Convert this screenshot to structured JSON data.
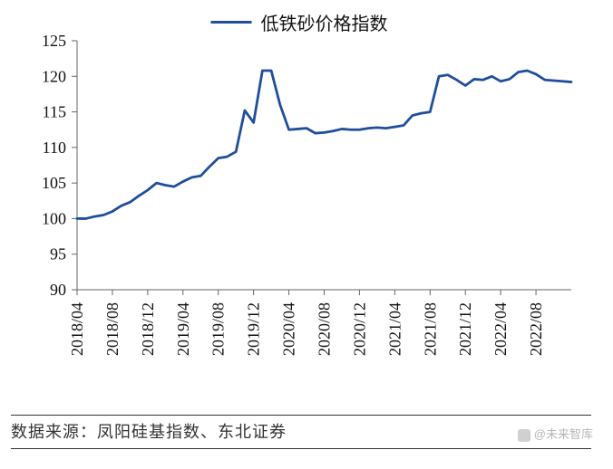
{
  "chart": {
    "type": "line",
    "legend_label": "低铁砂价格指数",
    "line_color": "#1f4e9b",
    "line_width": 2.8,
    "background_color": "#ffffff",
    "tick_color": "#666666",
    "axis_color": "#666666",
    "text_color": "#111111",
    "label_fontsize": 18,
    "legend_fontsize": 20,
    "ylim": [
      90,
      125
    ],
    "ytick_step": 5,
    "yticks": [
      90,
      95,
      100,
      105,
      110,
      115,
      120,
      125
    ],
    "xticks_labels": [
      "2018/04",
      "2018/08",
      "2018/12",
      "2019/04",
      "2019/08",
      "2019/12",
      "2020/04",
      "2020/08",
      "2020/12",
      "2021/04",
      "2021/08",
      "2021/12",
      "2022/04",
      "2022/08"
    ],
    "xticks_idx": [
      0,
      4,
      8,
      12,
      16,
      20,
      24,
      28,
      32,
      36,
      40,
      44,
      48,
      52
    ],
    "x_count": 57,
    "series": {
      "values": [
        100.0,
        100.0,
        100.3,
        100.5,
        101.0,
        101.8,
        102.3,
        103.2,
        104.0,
        105.0,
        104.7,
        104.5,
        105.2,
        105.8,
        106.0,
        107.3,
        108.5,
        108.7,
        109.4,
        115.2,
        113.5,
        120.8,
        120.8,
        116.0,
        112.5,
        112.6,
        112.7,
        112.0,
        112.1,
        112.3,
        112.6,
        112.5,
        112.5,
        112.7,
        112.8,
        112.7,
        112.9,
        113.1,
        114.5,
        114.8,
        115.0,
        120.0,
        120.2,
        119.5,
        118.7,
        119.6,
        119.5,
        120.0,
        119.3,
        119.6,
        120.6,
        120.8,
        120.3,
        119.5,
        119.4,
        119.3,
        119.2
      ]
    }
  },
  "footer": {
    "label": "数据来源：凤阳硅基指数、东北证券"
  },
  "watermark": {
    "text": "@未来智库"
  }
}
